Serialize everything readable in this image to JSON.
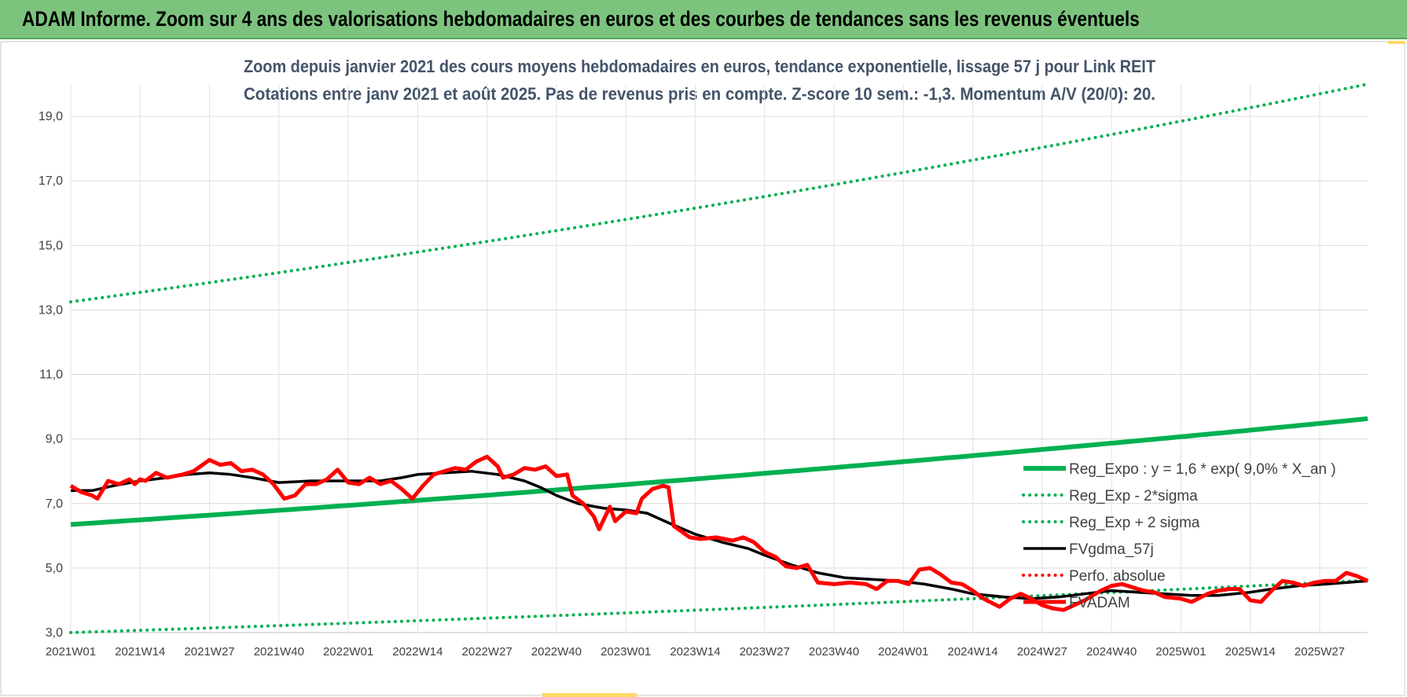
{
  "banner": {
    "title": "ADAM Informe. Zoom sur 4 ans des valorisations hebdomadaires en euros et des courbes de tendances sans les revenus éventuels",
    "color": "#7cc47e"
  },
  "chart_data": {
    "type": "line",
    "title_line1": "Zoom depuis janvier 2021 des cours moyens hebdomadaires en euros, tendance exponentielle, lissage 57 j pour Link REIT",
    "title_line2": "Cotations entre janv 2021 et août 2025. Pas de revenus pris en compte. Z-score 10 sem.: -1,3. Momentum A/V (20/0): 20.",
    "xlabel": "",
    "ylabel": "",
    "ylim": [
      3.0,
      20.0
    ],
    "yticks": [
      "3,0",
      "5,0",
      "7,0",
      "9,0",
      "11,0",
      "13,0",
      "15,0",
      "17,0",
      "19,0"
    ],
    "ytick_values": [
      3,
      5,
      7,
      9,
      11,
      13,
      15,
      17,
      19
    ],
    "x_categories": [
      "2021W01",
      "2021W14",
      "2021W27",
      "2021W40",
      "2022W01",
      "2022W14",
      "2022W27",
      "2022W40",
      "2023W01",
      "2023W14",
      "2023W27",
      "2023W40",
      "2024W01",
      "2024W14",
      "2024W27",
      "2024W40",
      "2025W01",
      "2025W14",
      "2025W27"
    ],
    "x_week_index": [
      0,
      13,
      26,
      39,
      52,
      65,
      78,
      91,
      104,
      117,
      130,
      143,
      156,
      169,
      182,
      195,
      208,
      221,
      234
    ],
    "x_last_week_index": 243,
    "grid": true,
    "legend_position": "bottom-right, inside plot",
    "series": [
      {
        "name": "Reg_Expo : y = 1,6 * exp( 9,0% *  X_an )",
        "color": "#00b050",
        "style": "solid-thick",
        "points": [
          [
            0,
            6.35
          ],
          [
            243,
            9.63
          ]
        ]
      },
      {
        "name": "Reg_Exp - 2*sigma",
        "color": "#00b050",
        "style": "dotted",
        "points": [
          [
            0,
            3.0
          ],
          [
            243,
            4.62
          ]
        ]
      },
      {
        "name": "Reg_Exp + 2 sigma",
        "color": "#00b050",
        "style": "dotted",
        "points": [
          [
            0,
            13.25
          ],
          [
            243,
            20.0
          ]
        ]
      },
      {
        "name": "FVgdma_57j",
        "color": "#000000",
        "style": "solid",
        "points": [
          [
            0,
            7.4
          ],
          [
            4,
            7.4
          ],
          [
            8,
            7.55
          ],
          [
            13,
            7.7
          ],
          [
            18,
            7.8
          ],
          [
            22,
            7.9
          ],
          [
            26,
            7.95
          ],
          [
            30,
            7.9
          ],
          [
            34,
            7.8
          ],
          [
            39,
            7.65
          ],
          [
            45,
            7.7
          ],
          [
            52,
            7.7
          ],
          [
            58,
            7.7
          ],
          [
            62,
            7.8
          ],
          [
            65,
            7.9
          ],
          [
            70,
            7.95
          ],
          [
            75,
            8.0
          ],
          [
            80,
            7.9
          ],
          [
            85,
            7.7
          ],
          [
            88,
            7.5
          ],
          [
            91,
            7.25
          ],
          [
            95,
            7.0
          ],
          [
            100,
            6.85
          ],
          [
            104,
            6.8
          ],
          [
            108,
            6.7
          ],
          [
            112,
            6.4
          ],
          [
            117,
            6.05
          ],
          [
            122,
            5.8
          ],
          [
            127,
            5.6
          ],
          [
            130,
            5.4
          ],
          [
            135,
            5.1
          ],
          [
            140,
            4.85
          ],
          [
            145,
            4.7
          ],
          [
            150,
            4.65
          ],
          [
            155,
            4.6
          ],
          [
            160,
            4.5
          ],
          [
            165,
            4.35
          ],
          [
            169,
            4.2
          ],
          [
            175,
            4.1
          ],
          [
            180,
            4.05
          ],
          [
            185,
            4.1
          ],
          [
            190,
            4.2
          ],
          [
            195,
            4.3
          ],
          [
            200,
            4.25
          ],
          [
            205,
            4.2
          ],
          [
            210,
            4.15
          ],
          [
            215,
            4.15
          ],
          [
            221,
            4.25
          ],
          [
            225,
            4.35
          ],
          [
            230,
            4.45
          ],
          [
            235,
            4.5
          ],
          [
            243,
            4.6
          ]
        ]
      },
      {
        "name": "Perfo. absolue",
        "color": "#ff0000",
        "style": "dotted",
        "points": []
      },
      {
        "name": "FVADAM",
        "color": "#ff0000",
        "style": "solid-thick",
        "points": [
          [
            0,
            7.55
          ],
          [
            2,
            7.35
          ],
          [
            4,
            7.25
          ],
          [
            5,
            7.15
          ],
          [
            7,
            7.7
          ],
          [
            9,
            7.6
          ],
          [
            11,
            7.75
          ],
          [
            12,
            7.6
          ],
          [
            13,
            7.75
          ],
          [
            14,
            7.7
          ],
          [
            16,
            7.95
          ],
          [
            18,
            7.8
          ],
          [
            21,
            7.9
          ],
          [
            23,
            8.0
          ],
          [
            26,
            8.35
          ],
          [
            28,
            8.2
          ],
          [
            30,
            8.25
          ],
          [
            32,
            8.0
          ],
          [
            34,
            8.05
          ],
          [
            36,
            7.9
          ],
          [
            38,
            7.6
          ],
          [
            40,
            7.15
          ],
          [
            42,
            7.25
          ],
          [
            44,
            7.6
          ],
          [
            46,
            7.6
          ],
          [
            48,
            7.75
          ],
          [
            50,
            8.05
          ],
          [
            52,
            7.65
          ],
          [
            54,
            7.6
          ],
          [
            56,
            7.8
          ],
          [
            58,
            7.6
          ],
          [
            60,
            7.7
          ],
          [
            62,
            7.45
          ],
          [
            64,
            7.15
          ],
          [
            66,
            7.55
          ],
          [
            68,
            7.9
          ],
          [
            70,
            8.0
          ],
          [
            72,
            8.1
          ],
          [
            74,
            8.05
          ],
          [
            76,
            8.3
          ],
          [
            78,
            8.45
          ],
          [
            80,
            8.15
          ],
          [
            81,
            7.8
          ],
          [
            83,
            7.9
          ],
          [
            85,
            8.1
          ],
          [
            87,
            8.05
          ],
          [
            89,
            8.15
          ],
          [
            91,
            7.85
          ],
          [
            93,
            7.9
          ],
          [
            94,
            7.25
          ],
          [
            96,
            7.0
          ],
          [
            98,
            6.6
          ],
          [
            99,
            6.2
          ],
          [
            101,
            6.9
          ],
          [
            102,
            6.45
          ],
          [
            104,
            6.75
          ],
          [
            106,
            6.7
          ],
          [
            107,
            7.15
          ],
          [
            109,
            7.45
          ],
          [
            111,
            7.55
          ],
          [
            112,
            7.5
          ],
          [
            113,
            6.3
          ],
          [
            116,
            5.95
          ],
          [
            118,
            5.9
          ],
          [
            121,
            5.95
          ],
          [
            124,
            5.85
          ],
          [
            126,
            5.95
          ],
          [
            128,
            5.8
          ],
          [
            130,
            5.5
          ],
          [
            132,
            5.35
          ],
          [
            134,
            5.05
          ],
          [
            136,
            5.0
          ],
          [
            138,
            5.1
          ],
          [
            140,
            4.55
          ],
          [
            143,
            4.5
          ],
          [
            146,
            4.55
          ],
          [
            149,
            4.5
          ],
          [
            151,
            4.35
          ],
          [
            153,
            4.6
          ],
          [
            155,
            4.6
          ],
          [
            157,
            4.5
          ],
          [
            159,
            4.95
          ],
          [
            161,
            5.0
          ],
          [
            163,
            4.8
          ],
          [
            165,
            4.55
          ],
          [
            167,
            4.5
          ],
          [
            169,
            4.3
          ],
          [
            171,
            4.05
          ],
          [
            174,
            3.8
          ],
          [
            176,
            4.05
          ],
          [
            178,
            4.2
          ],
          [
            180,
            4.05
          ],
          [
            182,
            3.85
          ],
          [
            184,
            3.75
          ],
          [
            186,
            3.7
          ],
          [
            188,
            3.85
          ],
          [
            190,
            4.0
          ],
          [
            193,
            4.3
          ],
          [
            195,
            4.45
          ],
          [
            197,
            4.5
          ],
          [
            199,
            4.4
          ],
          [
            201,
            4.3
          ],
          [
            203,
            4.25
          ],
          [
            205,
            4.1
          ],
          [
            208,
            4.05
          ],
          [
            210,
            3.95
          ],
          [
            213,
            4.2
          ],
          [
            215,
            4.3
          ],
          [
            217,
            4.35
          ],
          [
            219,
            4.35
          ],
          [
            221,
            4.0
          ],
          [
            223,
            3.95
          ],
          [
            225,
            4.3
          ],
          [
            227,
            4.6
          ],
          [
            229,
            4.55
          ],
          [
            231,
            4.45
          ],
          [
            233,
            4.55
          ],
          [
            235,
            4.6
          ],
          [
            237,
            4.6
          ],
          [
            239,
            4.85
          ],
          [
            241,
            4.75
          ],
          [
            243,
            4.6
          ]
        ]
      }
    ]
  }
}
